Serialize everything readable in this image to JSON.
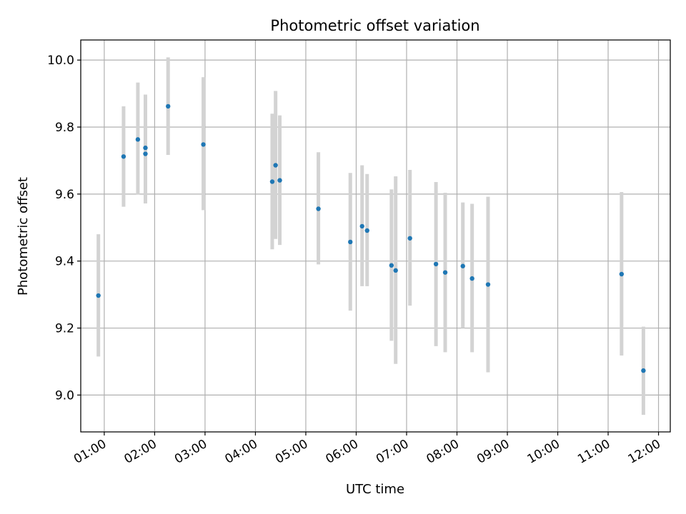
{
  "chart_data": {
    "type": "scatter",
    "title": "Photometric offset variation",
    "xlabel": "UTC time",
    "ylabel": "Photometric offset",
    "x_ticks": [
      "01:00",
      "02:00",
      "03:00",
      "04:00",
      "05:00",
      "06:00",
      "07:00",
      "08:00",
      "09:00",
      "10:00",
      "11:00",
      "12:00"
    ],
    "y_ticks": [
      "9.0",
      "9.2",
      "9.4",
      "9.6",
      "9.8",
      "10.0"
    ],
    "xlim": [
      "00:32",
      "12:14"
    ],
    "ylim": [
      8.89,
      10.06
    ],
    "grid": true,
    "marker_color": "#1f77b4",
    "errorbar_color": "#d3d3d3",
    "points": [
      {
        "x": "00:53",
        "y": 9.297,
        "yerr_low": 9.115,
        "yerr_high": 9.48
      },
      {
        "x": "01:23",
        "y": 9.712,
        "yerr_low": 9.562,
        "yerr_high": 9.862
      },
      {
        "x": "01:40",
        "y": 9.763,
        "yerr_low": 9.598,
        "yerr_high": 9.933
      },
      {
        "x": "01:49",
        "y": 9.738,
        "yerr_low": 9.572,
        "yerr_high": 9.897
      },
      {
        "x": "01:49",
        "y": 9.72,
        "yerr_low": 9.572,
        "yerr_high": 9.897
      },
      {
        "x": "02:16",
        "y": 9.862,
        "yerr_low": 9.717,
        "yerr_high": 10.008
      },
      {
        "x": "02:58",
        "y": 9.748,
        "yerr_low": 9.552,
        "yerr_high": 9.949
      },
      {
        "x": "04:20",
        "y": 9.637,
        "yerr_low": 9.435,
        "yerr_high": 9.84
      },
      {
        "x": "04:24",
        "y": 9.686,
        "yerr_low": 9.466,
        "yerr_high": 9.908
      },
      {
        "x": "04:29",
        "y": 9.641,
        "yerr_low": 9.448,
        "yerr_high": 9.835
      },
      {
        "x": "05:15",
        "y": 9.556,
        "yerr_low": 9.39,
        "yerr_high": 9.725
      },
      {
        "x": "05:53",
        "y": 9.457,
        "yerr_low": 9.252,
        "yerr_high": 9.663
      },
      {
        "x": "06:07",
        "y": 9.504,
        "yerr_low": 9.325,
        "yerr_high": 9.686
      },
      {
        "x": "06:13",
        "y": 9.491,
        "yerr_low": 9.325,
        "yerr_high": 9.66
      },
      {
        "x": "06:42",
        "y": 9.387,
        "yerr_low": 9.162,
        "yerr_high": 9.614
      },
      {
        "x": "06:47",
        "y": 9.372,
        "yerr_low": 9.093,
        "yerr_high": 9.653
      },
      {
        "x": "07:04",
        "y": 9.468,
        "yerr_low": 9.267,
        "yerr_high": 9.672
      },
      {
        "x": "07:35",
        "y": 9.391,
        "yerr_low": 9.146,
        "yerr_high": 9.636
      },
      {
        "x": "07:46",
        "y": 9.366,
        "yerr_low": 9.128,
        "yerr_high": 9.604
      },
      {
        "x": "08:07",
        "y": 9.385,
        "yerr_low": 9.2,
        "yerr_high": 9.575
      },
      {
        "x": "08:18",
        "y": 9.348,
        "yerr_low": 9.128,
        "yerr_high": 9.571
      },
      {
        "x": "08:37",
        "y": 9.33,
        "yerr_low": 9.068,
        "yerr_high": 9.592
      },
      {
        "x": "11:16",
        "y": 9.361,
        "yerr_low": 9.118,
        "yerr_high": 9.606
      },
      {
        "x": "11:42",
        "y": 9.073,
        "yerr_low": 8.941,
        "yerr_high": 9.204
      }
    ]
  }
}
